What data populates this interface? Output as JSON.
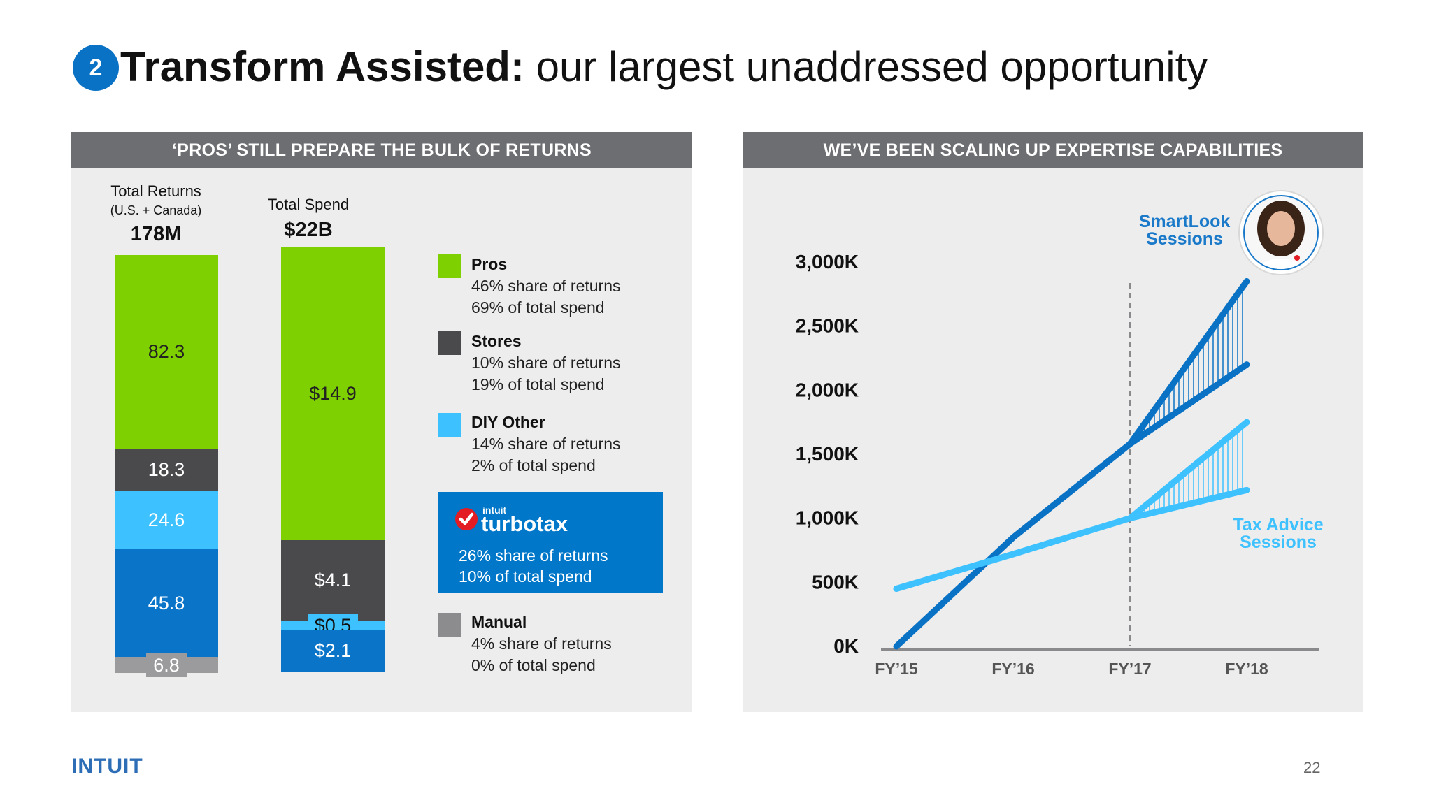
{
  "title": {
    "badge": "2",
    "bold": "Transform Assisted:",
    "rest": " our largest unaddressed opportunity"
  },
  "left_panel": {
    "header": "‘PROS’ STILL PREPARE THE BULK OF RETURNS",
    "returns_label": "Total Returns",
    "returns_sub": "(U.S. + Canada)",
    "returns_total": "178M",
    "spend_label": "Total Spend",
    "spend_total": "$22B",
    "legend": [
      {
        "title": "Pros",
        "line1": "46% share of returns",
        "line2": "69% of total spend",
        "color": "#7ed000"
      },
      {
        "title": "Stores",
        "line1": "10% share of returns",
        "line2": "19% of total spend",
        "color": "#4a4a4c"
      },
      {
        "title": "DIY Other",
        "line1": "14% share of returns",
        "line2": "2% of total spend",
        "color": "#3ec1ff"
      },
      {
        "title": "Manual",
        "line1": "4% share of returns",
        "line2": "0% of total spend",
        "color": "#8c8c8e"
      }
    ],
    "turbotax": {
      "brand_small": "intuit",
      "brand": "turbotax",
      "line1": "26% share of returns",
      "line2": "10% of total spend",
      "color": "#0077c8"
    }
  },
  "right_panel": {
    "header": "WE’VE BEEN SCALING UP EXPERTISE CAPABILITIES",
    "annotation_smartlook": [
      "SmartLook",
      "Sessions"
    ],
    "annotation_taxadvice": [
      "Tax Advice",
      "Sessions"
    ]
  },
  "chart_data": [
    {
      "type": "bar",
      "stacked": true,
      "categories": [
        "Total Returns",
        "Total Spend"
      ],
      "series": [
        {
          "name": "Pros",
          "values": [
            82.3,
            14.9
          ],
          "labels": [
            "82.3",
            "$14.9"
          ],
          "color": "#7ed000"
        },
        {
          "name": "Stores",
          "values": [
            18.3,
            4.1
          ],
          "labels": [
            "18.3",
            "$4.1"
          ],
          "color": "#4a4a4c"
        },
        {
          "name": "DIY Other",
          "values": [
            24.6,
            0.5
          ],
          "labels": [
            "24.6",
            "$0.5"
          ],
          "color": "#3ec1ff"
        },
        {
          "name": "TurboTax",
          "values": [
            45.8,
            2.1
          ],
          "labels": [
            "45.8",
            "$2.1"
          ],
          "color": "#0a74c8"
        },
        {
          "name": "Manual",
          "values": [
            6.8,
            0
          ],
          "labels": [
            "6.8",
            ""
          ],
          "color": "#9b9b9d"
        }
      ]
    },
    {
      "type": "line",
      "x": [
        "FY’15",
        "FY’16",
        "FY’17",
        "FY’18"
      ],
      "ylim": [
        0,
        3000
      ],
      "yticks": [
        "0K",
        "500K",
        "1,000K",
        "1,500K",
        "2,000K",
        "2,500K",
        "3,000K"
      ],
      "series": [
        {
          "name": "SmartLook Sessions",
          "values": [
            0,
            850,
            1580,
            2200
          ],
          "projected_FY18": 2850,
          "color": "#0a72c4"
        },
        {
          "name": "Tax Advice Sessions",
          "values": [
            450,
            720,
            1000,
            1220
          ],
          "projected_FY18": 1750,
          "color": "#3ec1ff"
        }
      ],
      "divider_at": "FY’17",
      "grid": false
    }
  ],
  "footer": {
    "logo": "INTUIT",
    "page": "22"
  }
}
